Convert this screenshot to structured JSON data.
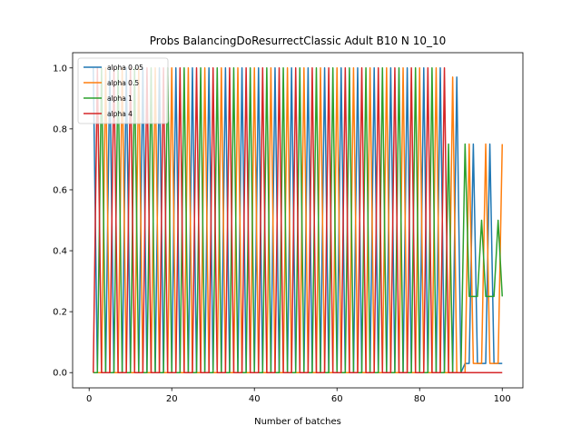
{
  "chart_data": {
    "type": "line",
    "title": "Probs BalancingDoResurrectClassic Adult B10 N 10_10",
    "xlabel": "Number of batches",
    "ylabel": "",
    "xlim": [
      -4,
      105
    ],
    "ylim": [
      -0.05,
      1.05
    ],
    "xticks": [
      0,
      20,
      40,
      60,
      80,
      100
    ],
    "yticks": [
      0.0,
      0.2,
      0.4,
      0.6,
      0.8,
      1.0
    ],
    "xtick_labels": [
      "0",
      "20",
      "40",
      "60",
      "80",
      "100"
    ],
    "ytick_labels": [
      "0.0",
      "0.2",
      "0.4",
      "0.6",
      "0.8",
      "1.0"
    ],
    "grid": false,
    "legend_position": "top-left",
    "series": [
      {
        "name": "alpha 0.05",
        "color": "#1f77b4",
        "pattern": {
          "x_start": 1,
          "x_end": 100,
          "phase": 0,
          "segments": [
            {
              "until": 87,
              "high": 1.0,
              "low": 0.0
            },
            {
              "until": 91,
              "high": 0.97,
              "low": 0.0
            },
            {
              "until": 101,
              "high": 0.75,
              "low": 0.03
            }
          ]
        }
      },
      {
        "name": "alpha 0.5",
        "color": "#ff7f0e",
        "pattern": {
          "x_start": 1,
          "x_end": 100,
          "phase": 1,
          "segments": [
            {
              "until": 88,
              "high": 1.0,
              "low": 0.0
            },
            {
              "until": 92,
              "high": 0.97,
              "low": 0.0
            },
            {
              "until": 101,
              "high": 0.75,
              "low": 0.03
            }
          ]
        }
      },
      {
        "name": "alpha 1",
        "color": "#2ca02c",
        "pattern": {
          "x_start": 1,
          "x_end": 100,
          "phase": 2,
          "segments": [
            {
              "until": 87,
              "high": 1.0,
              "low": 0.0
            },
            {
              "until": 92,
              "high": 0.75,
              "low": 0.0
            },
            {
              "until": 101,
              "high": 0.5,
              "low": 0.25
            }
          ]
        }
      },
      {
        "name": "alpha 4",
        "color": "#d62728",
        "pattern": {
          "x_start": 1,
          "x_end": 100,
          "phase": 3,
          "segments": [
            {
              "until": 87,
              "high": 1.0,
              "low": 0.0
            },
            {
              "until": 91,
              "high": 0.0,
              "low": 0.0
            },
            {
              "until": 93,
              "high": 0.25,
              "low": 0.0
            },
            {
              "until": 101,
              "high": 0.0,
              "low": 0.0
            }
          ]
        }
      }
    ]
  }
}
